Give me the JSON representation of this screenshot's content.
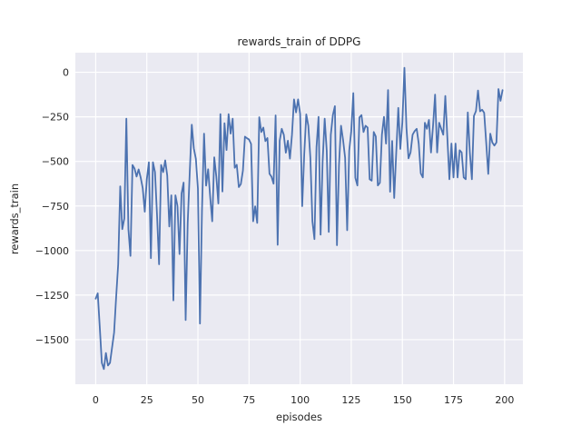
{
  "colors": {
    "figure_background": "#ffffff",
    "plot_background": "#eaeaf2",
    "grid": "#ffffff",
    "line": "#4c72b0",
    "text": "#262626"
  },
  "chart_data": {
    "type": "line",
    "title": "rewards_train of DDPG",
    "xlabel": "episodes",
    "ylabel": "rewards_train",
    "x_ticks": [
      0,
      25,
      50,
      75,
      100,
      125,
      150,
      175,
      200
    ],
    "y_ticks": [
      0,
      -250,
      -500,
      -750,
      -1000,
      -1250,
      -1500
    ],
    "xlim": [
      -9.95,
      208.95
    ],
    "ylim": [
      -1750,
      110
    ],
    "grid": true,
    "legend": null,
    "x_start": 0,
    "x_step": 1,
    "series": [
      {
        "name": "rewards_train",
        "color": "#4c72b0",
        "values": [
          -1270,
          -1240,
          -1430,
          -1630,
          -1665,
          -1575,
          -1645,
          -1630,
          -1545,
          -1460,
          -1262,
          -1078,
          -640,
          -880,
          -820,
          -260,
          -880,
          -1030,
          -520,
          -540,
          -585,
          -545,
          -590,
          -650,
          -782,
          -600,
          -505,
          -1043,
          -505,
          -560,
          -800,
          -1077,
          -520,
          -560,
          -494,
          -580,
          -865,
          -690,
          -1280,
          -690,
          -750,
          -1020,
          -680,
          -619,
          -1390,
          -845,
          -561,
          -294,
          -427,
          -486,
          -653,
          -1410,
          -770,
          -344,
          -636,
          -544,
          -700,
          -836,
          -477,
          -586,
          -736,
          -235,
          -669,
          -286,
          -436,
          -235,
          -344,
          -260,
          -536,
          -519,
          -644,
          -627,
          -552,
          -361,
          -370,
          -377,
          -402,
          -836,
          -752,
          -845,
          -252,
          -335,
          -310,
          -386,
          -369,
          -569,
          -586,
          -625,
          -242,
          -968,
          -384,
          -317,
          -350,
          -451,
          -384,
          -484,
          -351,
          -152,
          -225,
          -152,
          -234,
          -751,
          -460,
          -236,
          -300,
          -480,
          -836,
          -936,
          -420,
          -250,
          -911,
          -500,
          -260,
          -440,
          -896,
          -350,
          -240,
          -190,
          -970,
          -520,
          -300,
          -380,
          -480,
          -886,
          -440,
          -330,
          -117,
          -592,
          -635,
          -253,
          -240,
          -335,
          -300,
          -310,
          -600,
          -608,
          -335,
          -360,
          -635,
          -620,
          -350,
          -250,
          -400,
          -100,
          -670,
          -385,
          -705,
          -450,
          -200,
          -430,
          -280,
          25,
          -312,
          -483,
          -450,
          -350,
          -330,
          -317,
          -400,
          -567,
          -590,
          -283,
          -317,
          -267,
          -450,
          -300,
          -125,
          -450,
          -283,
          -317,
          -350,
          -133,
          -367,
          -600,
          -400,
          -590,
          -400,
          -590,
          -437,
          -450,
          -590,
          -600,
          -225,
          -450,
          -600,
          -245,
          -217,
          -102,
          -219,
          -210,
          -227,
          -394,
          -570,
          -344,
          -394,
          -411,
          -394,
          -94,
          -160,
          -100
        ]
      }
    ]
  }
}
